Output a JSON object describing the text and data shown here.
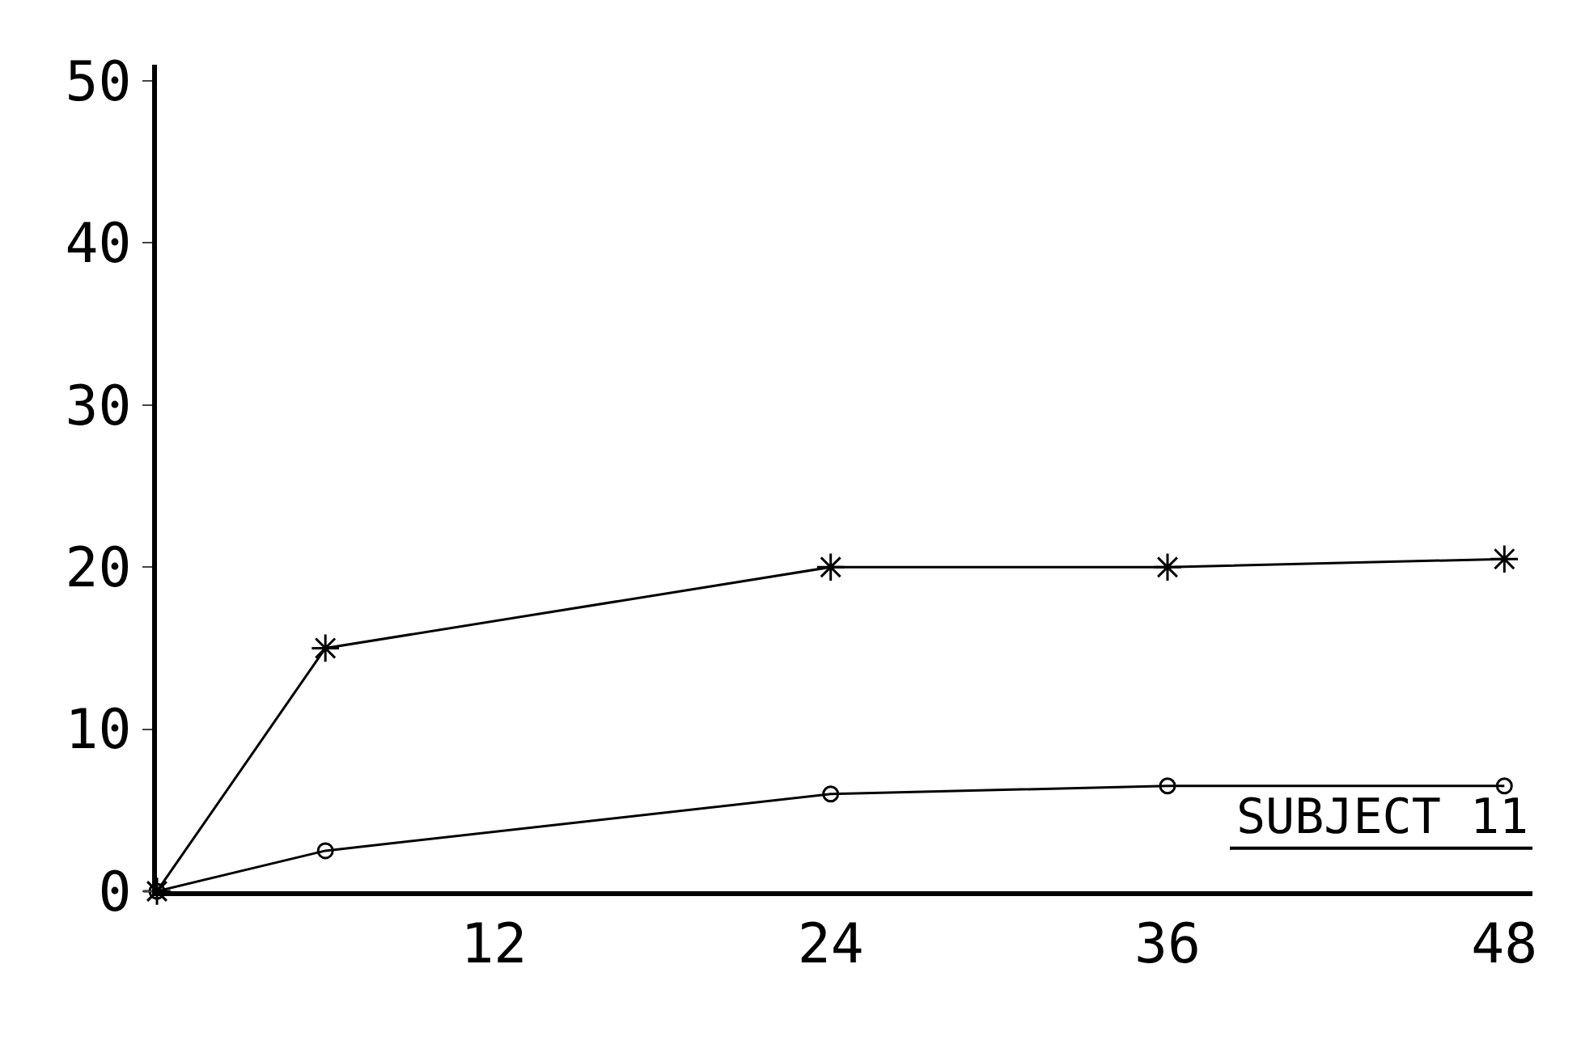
{
  "chart_data": {
    "type": "line",
    "x": [
      0,
      6,
      24,
      36,
      48
    ],
    "series": [
      {
        "color": "#000000",
        "marker": "cross",
        "values": [
          0,
          15,
          20,
          20,
          20.5
        ]
      },
      {
        "color": "#000000",
        "marker": "circle",
        "values": [
          0,
          2.5,
          6,
          6.5,
          6.5
        ]
      }
    ],
    "xlim": [
      0,
      49
    ],
    "xticks": [
      12,
      24,
      36,
      48
    ],
    "ylim": [
      0,
      51
    ],
    "yticks": [
      0,
      10,
      20,
      30,
      40,
      50
    ],
    "annotations": [
      "SUBJECT 11"
    ],
    "grid": false,
    "line_style": "solid"
  }
}
